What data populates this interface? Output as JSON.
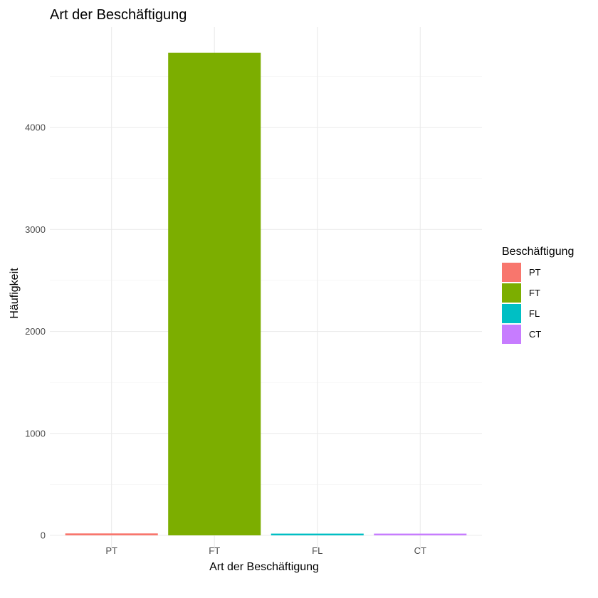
{
  "chart_data": {
    "type": "bar",
    "title": "Art der Beschäftigung",
    "xlabel": "Art der Beschäftigung",
    "ylabel": "Häufigkeit",
    "categories": [
      "PT",
      "FT",
      "FL",
      "CT"
    ],
    "values": [
      19,
      4734,
      17,
      17
    ],
    "colors": [
      "#F8766D",
      "#7CAE00",
      "#00BFC4",
      "#C77CFF"
    ],
    "ylim": [
      0,
      4734
    ],
    "yticks": [
      0,
      1000,
      2000,
      3000,
      4000
    ],
    "grid": true,
    "legend": {
      "title": "Beschäftigung",
      "placement": "right",
      "entries": [
        "PT",
        "FT",
        "FL",
        "CT"
      ]
    }
  }
}
